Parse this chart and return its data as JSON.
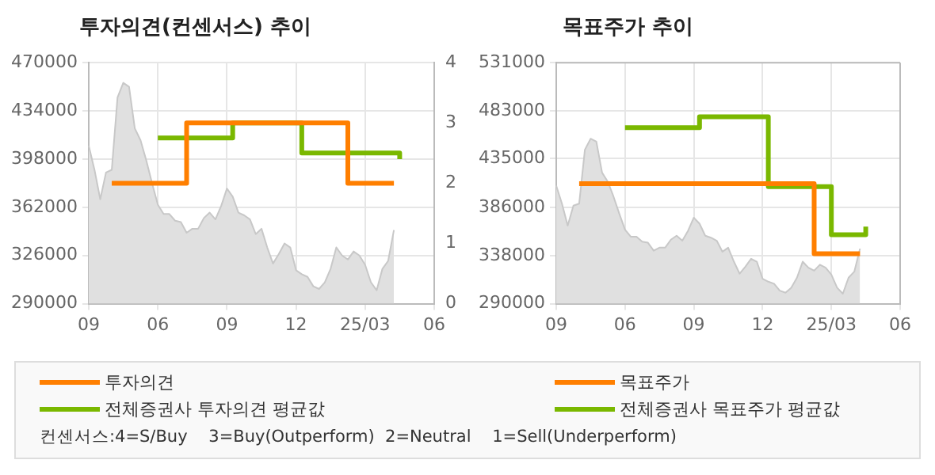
{
  "chart_data": [
    {
      "type": "area",
      "title": "투자의견(컨센서스) 추이",
      "categories": [
        "09",
        null,
        null,
        null,
        null,
        null,
        null,
        null,
        null,
        null,
        null,
        null,
        "06",
        null,
        null,
        null,
        null,
        null,
        null,
        null,
        null,
        null,
        null,
        null,
        "09",
        null,
        null,
        null,
        null,
        null,
        null,
        null,
        null,
        null,
        null,
        null,
        "12",
        null,
        null,
        null,
        null,
        null,
        null,
        null,
        null,
        null,
        null,
        null,
        "25/03",
        null,
        null,
        null,
        null,
        null,
        null,
        null,
        null,
        null,
        null,
        null,
        "06"
      ],
      "ylim": [
        290000,
        470000
      ],
      "yticks": [
        290000,
        326000,
        362000,
        398000,
        434000,
        470000
      ],
      "y2lim": [
        0,
        4
      ],
      "y2ticks": [
        0,
        1,
        2,
        3,
        4
      ],
      "grid": true,
      "legend": "bottom",
      "annotations": [
        "컨센서스:4=S/Buy    3=Buy(Outperform)  2=Neutral    1=Sell(Underperform)"
      ],
      "series": [
        {
          "type": "area",
          "color": "#e0e0e0",
          "values": [
            408000,
            390000,
            368000,
            388000,
            390000,
            444000,
            455000,
            452000,
            421000,
            412000,
            397000,
            380000,
            364000,
            357000,
            357000,
            352000,
            351000,
            343000,
            346000,
            346000,
            354000,
            358000,
            353000,
            363000,
            376000,
            370000,
            358000,
            356000,
            353000,
            342000,
            346000,
            332000,
            320000,
            327000,
            335000,
            332000,
            315000,
            312000,
            310000,
            303000,
            301000,
            306000,
            316000,
            332000,
            326000,
            323000,
            329000,
            326000,
            319000,
            306000,
            300000,
            316000,
            322000,
            345000,
            null,
            null,
            null,
            null,
            null,
            null,
            null
          ]
        },
        {
          "type": "step",
          "name": "투자의견",
          "color": "#ff7f00",
          "axis": "y2",
          "values": [
            null,
            null,
            null,
            null,
            2,
            2,
            2,
            2,
            2,
            2,
            2,
            2,
            2,
            2,
            2,
            2,
            2,
            3,
            3,
            3,
            3,
            3,
            3,
            3,
            3,
            3,
            3,
            3,
            3,
            3,
            3,
            3,
            3,
            3,
            3,
            3,
            3,
            3,
            3,
            3,
            3,
            3,
            3,
            3,
            3,
            2,
            2,
            2,
            2,
            2,
            2,
            2,
            2,
            2,
            null,
            null,
            null,
            null,
            null,
            null,
            null
          ]
        },
        {
          "type": "step",
          "name": "전체증권사 투자의견 평균값",
          "color": "#7ab800",
          "axis": "y2",
          "values": [
            null,
            null,
            null,
            null,
            null,
            null,
            null,
            null,
            null,
            null,
            null,
            null,
            2.75,
            2.75,
            2.75,
            2.75,
            2.75,
            2.75,
            2.75,
            2.75,
            2.75,
            2.75,
            2.75,
            2.75,
            2.75,
            3,
            3,
            3,
            3,
            3,
            3,
            3,
            3,
            3,
            3,
            3,
            3,
            2.5,
            2.5,
            2.5,
            2.5,
            2.5,
            2.5,
            2.5,
            2.5,
            2.5,
            2.5,
            2.5,
            2.5,
            2.5,
            2.5,
            2.5,
            2.5,
            2.5,
            2.4,
            null,
            null,
            null,
            null,
            null,
            null
          ]
        }
      ]
    },
    {
      "type": "area",
      "title": "목표주가 추이",
      "categories": [
        "09",
        null,
        null,
        null,
        null,
        null,
        null,
        null,
        null,
        null,
        null,
        null,
        "06",
        null,
        null,
        null,
        null,
        null,
        null,
        null,
        null,
        null,
        null,
        null,
        "09",
        null,
        null,
        null,
        null,
        null,
        null,
        null,
        null,
        null,
        null,
        null,
        "12",
        null,
        null,
        null,
        null,
        null,
        null,
        null,
        null,
        null,
        null,
        null,
        "25/03",
        null,
        null,
        null,
        null,
        null,
        null,
        null,
        null,
        null,
        null,
        null,
        "06"
      ],
      "ylim": [
        290000,
        531000
      ],
      "yticks": [
        290000,
        338000,
        386000,
        435000,
        483000,
        531000
      ],
      "grid": true,
      "legend": "bottom",
      "series": [
        {
          "type": "area",
          "color": "#e0e0e0",
          "values": [
            408000,
            390000,
            368000,
            388000,
            390000,
            444000,
            455000,
            452000,
            421000,
            412000,
            397000,
            380000,
            364000,
            357000,
            357000,
            352000,
            351000,
            343000,
            346000,
            346000,
            354000,
            358000,
            353000,
            363000,
            376000,
            370000,
            358000,
            356000,
            353000,
            342000,
            346000,
            332000,
            320000,
            327000,
            335000,
            332000,
            315000,
            312000,
            310000,
            303000,
            301000,
            306000,
            316000,
            332000,
            326000,
            323000,
            329000,
            326000,
            319000,
            306000,
            300000,
            316000,
            322000,
            345000,
            null,
            null,
            null,
            null,
            null,
            null,
            null
          ]
        },
        {
          "type": "step",
          "name": "목표주가",
          "color": "#ff7f00",
          "values": [
            null,
            null,
            null,
            null,
            410000,
            410000,
            410000,
            410000,
            410000,
            410000,
            410000,
            410000,
            410000,
            410000,
            410000,
            410000,
            410000,
            410000,
            410000,
            410000,
            410000,
            410000,
            410000,
            410000,
            410000,
            410000,
            410000,
            410000,
            410000,
            410000,
            410000,
            410000,
            410000,
            410000,
            410000,
            410000,
            410000,
            410000,
            410000,
            410000,
            410000,
            410000,
            410000,
            410000,
            410000,
            340000,
            340000,
            340000,
            340000,
            340000,
            340000,
            340000,
            340000,
            340000,
            null,
            null,
            null,
            null,
            null,
            null,
            null
          ]
        },
        {
          "type": "step",
          "name": "전체증권사 목표주가 평균값",
          "color": "#7ab800",
          "values": [
            null,
            null,
            null,
            null,
            null,
            null,
            null,
            null,
            null,
            null,
            null,
            null,
            466000,
            466000,
            466000,
            466000,
            466000,
            466000,
            466000,
            466000,
            466000,
            466000,
            466000,
            466000,
            466000,
            477000,
            477000,
            477000,
            477000,
            477000,
            477000,
            477000,
            477000,
            477000,
            477000,
            477000,
            477000,
            407000,
            407000,
            407000,
            407000,
            407000,
            407000,
            407000,
            407000,
            407000,
            407000,
            407000,
            359000,
            359000,
            359000,
            359000,
            359000,
            359000,
            367000,
            null,
            null,
            null,
            null,
            null,
            null
          ]
        }
      ]
    }
  ]
}
